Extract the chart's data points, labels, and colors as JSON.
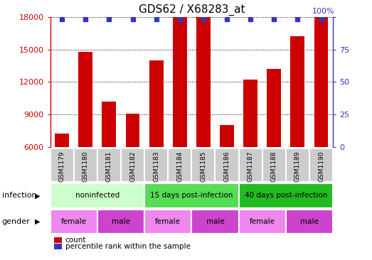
{
  "title": "GDS62 / X68283_at",
  "samples": [
    "GSM1179",
    "GSM1180",
    "GSM1181",
    "GSM1182",
    "GSM1183",
    "GSM1184",
    "GSM1185",
    "GSM1186",
    "GSM1187",
    "GSM1188",
    "GSM1189",
    "GSM1190"
  ],
  "counts": [
    7200,
    14800,
    10200,
    9100,
    14000,
    18000,
    18000,
    8000,
    12200,
    13200,
    16200,
    18000
  ],
  "ymin": 6000,
  "ymax": 18000,
  "yticks_left": [
    6000,
    9000,
    12000,
    15000,
    18000
  ],
  "yticks_right": [
    0,
    25,
    50,
    75,
    100
  ],
  "bar_color": "#cc0000",
  "dot_color": "#3333cc",
  "infection_groups": [
    {
      "label": "noninfected",
      "start": 0,
      "end": 3,
      "color": "#ccffcc"
    },
    {
      "label": "15 days post-infection",
      "start": 4,
      "end": 7,
      "color": "#55dd55"
    },
    {
      "label": "40 days post-infection",
      "start": 8,
      "end": 11,
      "color": "#22bb22"
    }
  ],
  "gender_groups": [
    {
      "label": "female",
      "start": 0,
      "end": 1,
      "color": "#ee88ee"
    },
    {
      "label": "male",
      "start": 2,
      "end": 3,
      "color": "#cc44cc"
    },
    {
      "label": "female",
      "start": 4,
      "end": 5,
      "color": "#ee88ee"
    },
    {
      "label": "male",
      "start": 6,
      "end": 7,
      "color": "#cc44cc"
    },
    {
      "label": "female",
      "start": 8,
      "end": 9,
      "color": "#ee88ee"
    },
    {
      "label": "male",
      "start": 10,
      "end": 11,
      "color": "#cc44cc"
    }
  ],
  "label_row_bg": "#cccccc",
  "infection_label": "infection",
  "gender_label": "gender",
  "legend_count_label": "count",
  "legend_percentile_label": "percentile rank within the sample"
}
